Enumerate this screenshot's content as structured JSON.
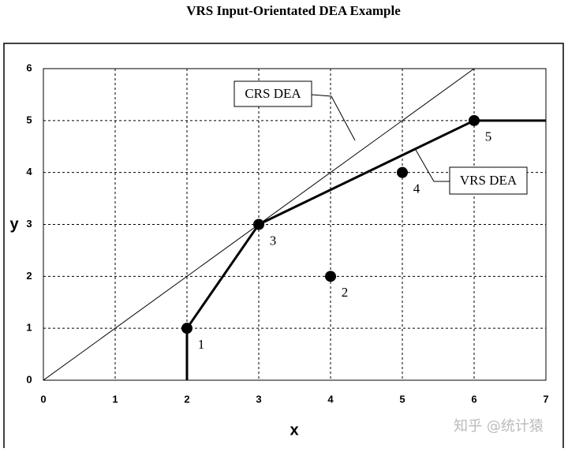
{
  "chart_data": {
    "type": "scatter",
    "title": "VRS Input-Orientated DEA Example",
    "xlabel": "x",
    "ylabel": "y",
    "xlim": [
      0,
      7
    ],
    "ylim": [
      0,
      6
    ],
    "xticks": [
      0,
      1,
      2,
      3,
      4,
      5,
      6,
      7
    ],
    "yticks": [
      0,
      1,
      2,
      3,
      4,
      5,
      6
    ],
    "grid": true,
    "points": {
      "x": [
        2,
        4,
        3,
        5,
        6
      ],
      "y": [
        1,
        2,
        3,
        4,
        5
      ],
      "point_labels": [
        "1",
        "2",
        "3",
        "4",
        "5"
      ],
      "color": "#000000"
    },
    "series": [
      {
        "name": "CRS DEA",
        "x": [
          0,
          6
        ],
        "y": [
          0,
          6
        ],
        "color": "#000000",
        "width": 1
      },
      {
        "name": "VRS DEA",
        "x": [
          2,
          2,
          3,
          6,
          7
        ],
        "y": [
          0,
          1,
          3,
          5,
          5
        ],
        "color": "#000000",
        "width": 3
      }
    ],
    "watermark": "知乎 @统计猿"
  }
}
